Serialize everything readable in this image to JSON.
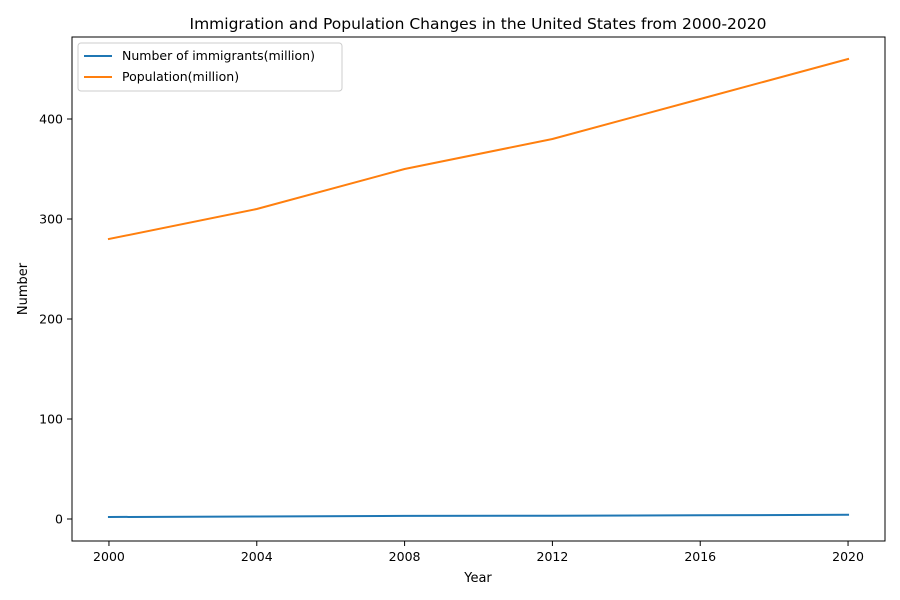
{
  "chart_data": {
    "type": "line",
    "title": "Immigration and Population Changes in the United States from 2000-2020",
    "xlabel": "Year",
    "ylabel": "Number",
    "xlim": [
      1999,
      2021
    ],
    "ylim": [
      -22,
      482
    ],
    "x_ticks": [
      2000,
      2004,
      2008,
      2012,
      2016,
      2020
    ],
    "y_ticks": [
      0,
      100,
      200,
      300,
      400
    ],
    "grid": false,
    "legend_position": "top-left",
    "x": [
      2000,
      2004,
      2008,
      2012,
      2016,
      2020
    ],
    "series": [
      {
        "name": "Number of immigrants(million)",
        "color": "#1f77b4",
        "values": [
          2.0,
          2.5,
          3.1,
          3.3,
          3.7,
          4.2
        ]
      },
      {
        "name": "Population(million)",
        "color": "#ff7f0e",
        "values": [
          280,
          310,
          350,
          380,
          420,
          460
        ]
      }
    ]
  }
}
